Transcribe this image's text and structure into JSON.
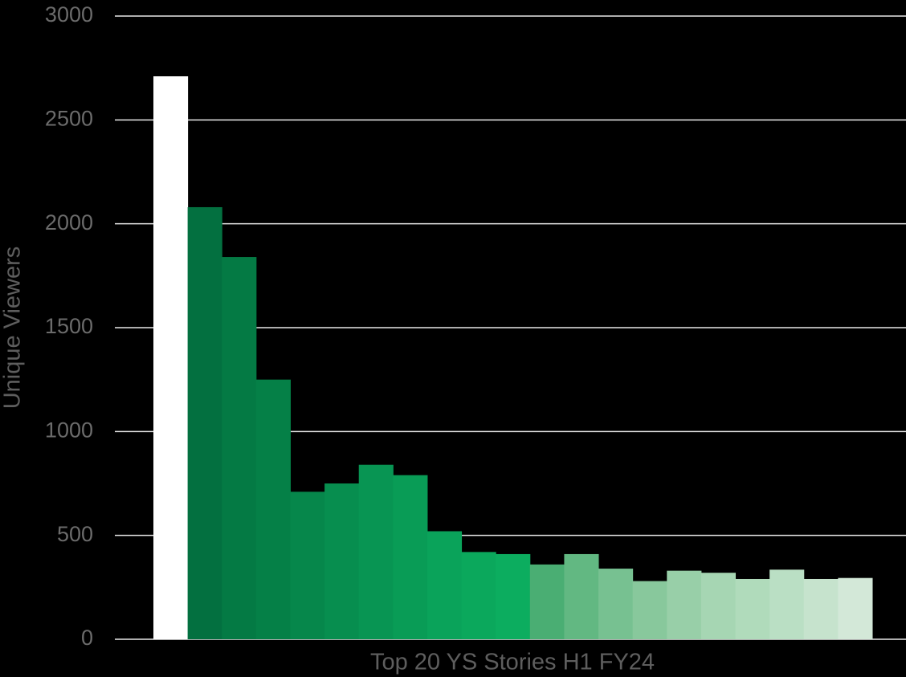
{
  "chart_data": {
    "type": "bar",
    "x_label": "Top 20 YS Stories H1 FY24",
    "y_label": "Unique Viewers",
    "categories": [
      null,
      null,
      null,
      null,
      null,
      null,
      null,
      null,
      null,
      null,
      null,
      null,
      null,
      null,
      null,
      null,
      null,
      null,
      null,
      null,
      null
    ],
    "values": [
      2710,
      2080,
      1840,
      1250,
      710,
      750,
      840,
      790,
      520,
      420,
      410,
      360,
      410,
      340,
      280,
      330,
      320,
      290,
      335,
      290,
      295
    ],
    "colors": [
      "#ffffff",
      "#037040",
      "#047a44",
      "#058047",
      "#06874b",
      "#078e4f",
      "#089553",
      "#099c56",
      "#0aa35a",
      "#0ba85c",
      "#0cad5f",
      "#4aae73",
      "#62b882",
      "#77c191",
      "#88c89c",
      "#98cfa8",
      "#a6d6b3",
      "#b0dbbb",
      "#badfc4",
      "#c6e3cd",
      "#d3e8d8"
    ],
    "ylim": [
      0,
      3000
    ],
    "yticks": [
      0,
      500,
      1000,
      1500,
      2000,
      2500,
      3000
    ],
    "grid": true
  }
}
